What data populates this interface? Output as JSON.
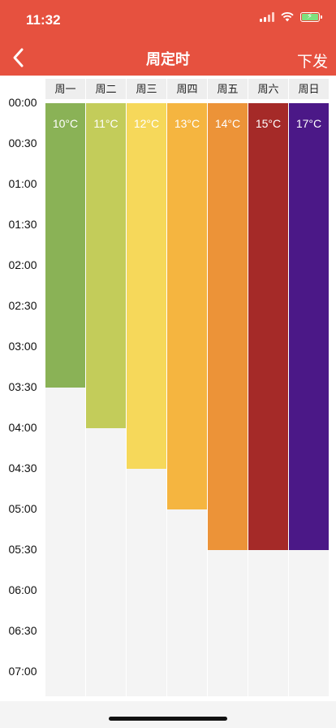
{
  "status_bar": {
    "time": "11:32",
    "icons": [
      "signal-icon",
      "wifi-icon",
      "battery-charging-icon"
    ]
  },
  "nav": {
    "back_icon": "chevron-left-icon",
    "title": "周定时",
    "send_label": "下发"
  },
  "colors": {
    "header": "#e6513f"
  },
  "days": [
    "周一",
    "周二",
    "周三",
    "周四",
    "周五",
    "周六",
    "周日"
  ],
  "time_labels": [
    "00:00",
    "00:30",
    "01:00",
    "01:30",
    "02:00",
    "02:30",
    "03:00",
    "03:30",
    "04:00",
    "04:30",
    "05:00",
    "05:30",
    "06:00",
    "06:30",
    "07:00"
  ],
  "schedule": [
    {
      "day": "周一",
      "temp": "10°C",
      "start": "00:00",
      "end": "03:30",
      "color": "#8ab256"
    },
    {
      "day": "周二",
      "temp": "11°C",
      "start": "00:00",
      "end": "04:00",
      "color": "#c3cc5a"
    },
    {
      "day": "周三",
      "temp": "12°C",
      "start": "00:00",
      "end": "04:30",
      "color": "#f6d85a"
    },
    {
      "day": "周四",
      "temp": "13°C",
      "start": "00:00",
      "end": "05:00",
      "color": "#f5b540"
    },
    {
      "day": "周五",
      "temp": "14°C",
      "start": "00:00",
      "end": "05:30",
      "color": "#ec9338"
    },
    {
      "day": "周六",
      "temp": "15°C",
      "start": "00:00",
      "end": "05:30",
      "color": "#a52a28"
    },
    {
      "day": "周日",
      "temp": "17°C",
      "start": "00:00",
      "end": "05:30",
      "color": "#4b1887"
    }
  ]
}
